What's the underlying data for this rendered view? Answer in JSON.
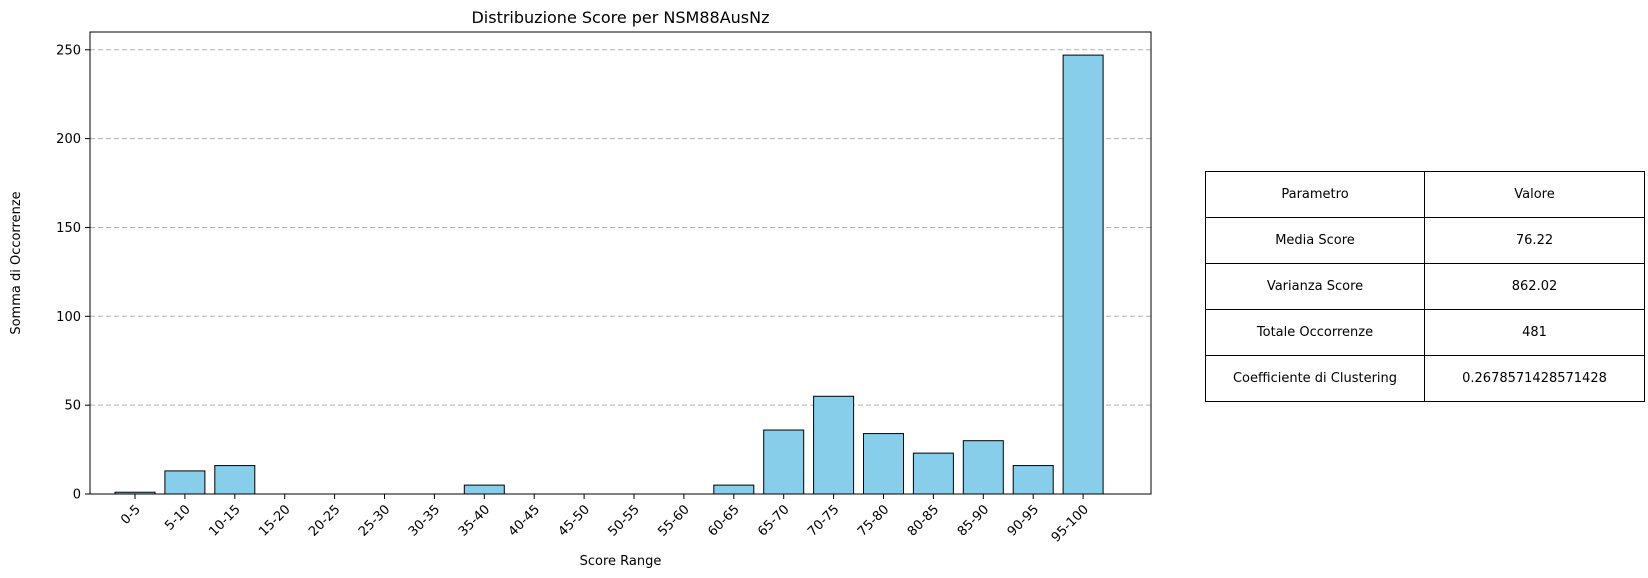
{
  "chart_data": {
    "type": "bar",
    "title": "Distribuzione Score per NSM88AusNz",
    "xlabel": "Score Range",
    "ylabel": "Somma di Occorrenze",
    "categories": [
      "0-5",
      "5-10",
      "10-15",
      "15-20",
      "20-25",
      "25-30",
      "30-35",
      "35-40",
      "40-45",
      "45-50",
      "50-55",
      "55-60",
      "60-65",
      "65-70",
      "70-75",
      "75-80",
      "80-85",
      "85-90",
      "90-95",
      "95-100"
    ],
    "values": [
      1,
      13,
      16,
      0,
      0,
      0,
      0,
      5,
      0,
      0,
      0,
      0,
      5,
      36,
      55,
      34,
      23,
      30,
      16,
      247
    ],
    "ylim": [
      0,
      260
    ],
    "yticks": [
      0,
      50,
      100,
      150,
      200,
      250
    ],
    "grid": "y-dashed",
    "bar_color": "#87CEEB",
    "edge_color": "#000000"
  },
  "table": {
    "headers": [
      "Parametro",
      "Valore"
    ],
    "rows": [
      [
        "Media Score",
        "76.22"
      ],
      [
        "Varianza Score",
        "862.02"
      ],
      [
        "Totale Occorrenze",
        "481"
      ],
      [
        "Coefficiente di Clustering",
        "0.2678571428571428"
      ]
    ]
  }
}
